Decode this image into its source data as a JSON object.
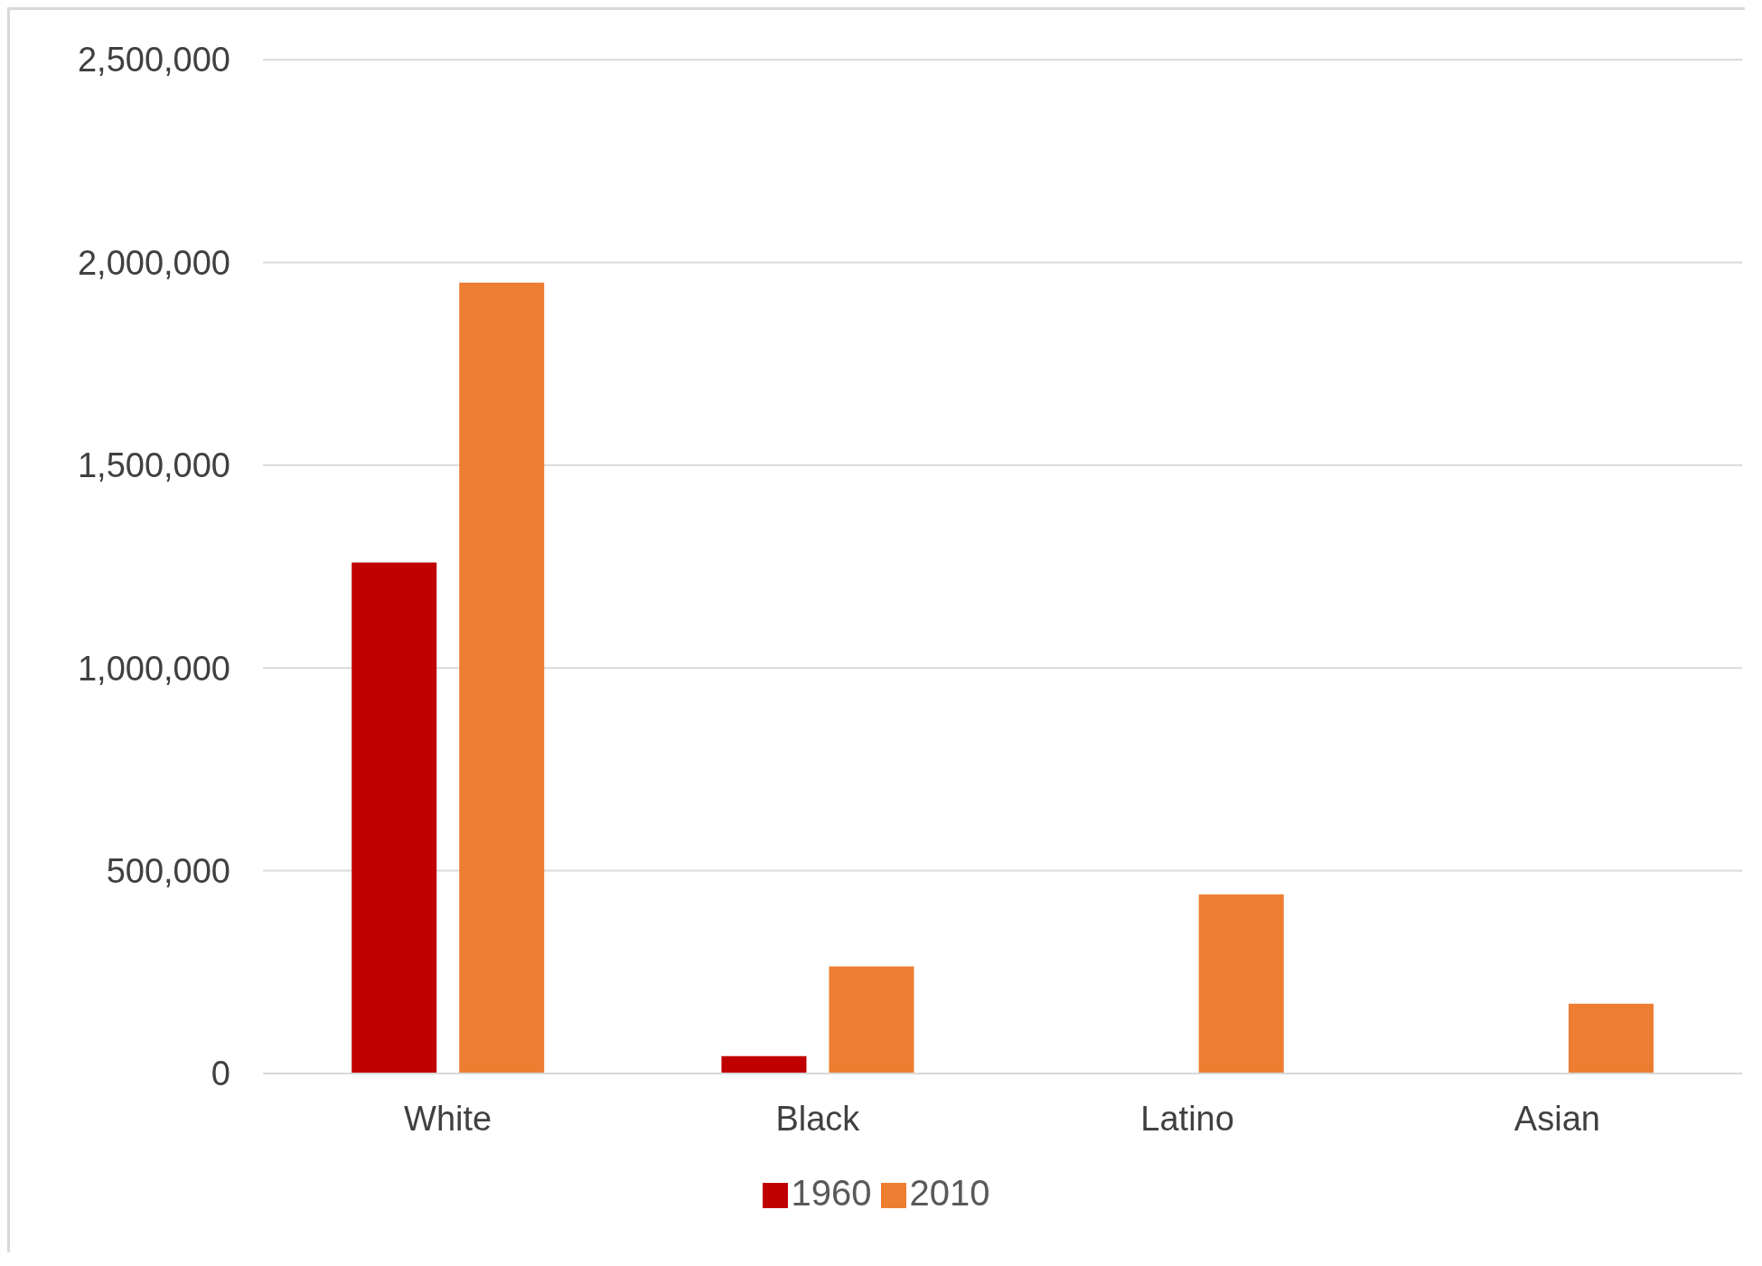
{
  "chart_data": {
    "type": "bar",
    "categories": [
      "White",
      "Black",
      "Latino",
      "Asian"
    ],
    "series": [
      {
        "name": "1960",
        "color": "#c00000",
        "values": [
          1260000,
          43000,
          null,
          null
        ]
      },
      {
        "name": "2010",
        "color": "#ed7d31",
        "values": [
          1950000,
          264000,
          442000,
          172000
        ]
      }
    ],
    "ylim": [
      0,
      2500000
    ],
    "yticks": [
      {
        "value": 0,
        "label": "0"
      },
      {
        "value": 500000,
        "label": "500,000"
      },
      {
        "value": 1000000,
        "label": "1,000,000"
      },
      {
        "value": 1500000,
        "label": "1,500,000"
      },
      {
        "value": 2000000,
        "label": "2,000,000"
      },
      {
        "value": 2500000,
        "label": "2,500,000"
      }
    ],
    "grid": "y",
    "legend": "bottom"
  }
}
